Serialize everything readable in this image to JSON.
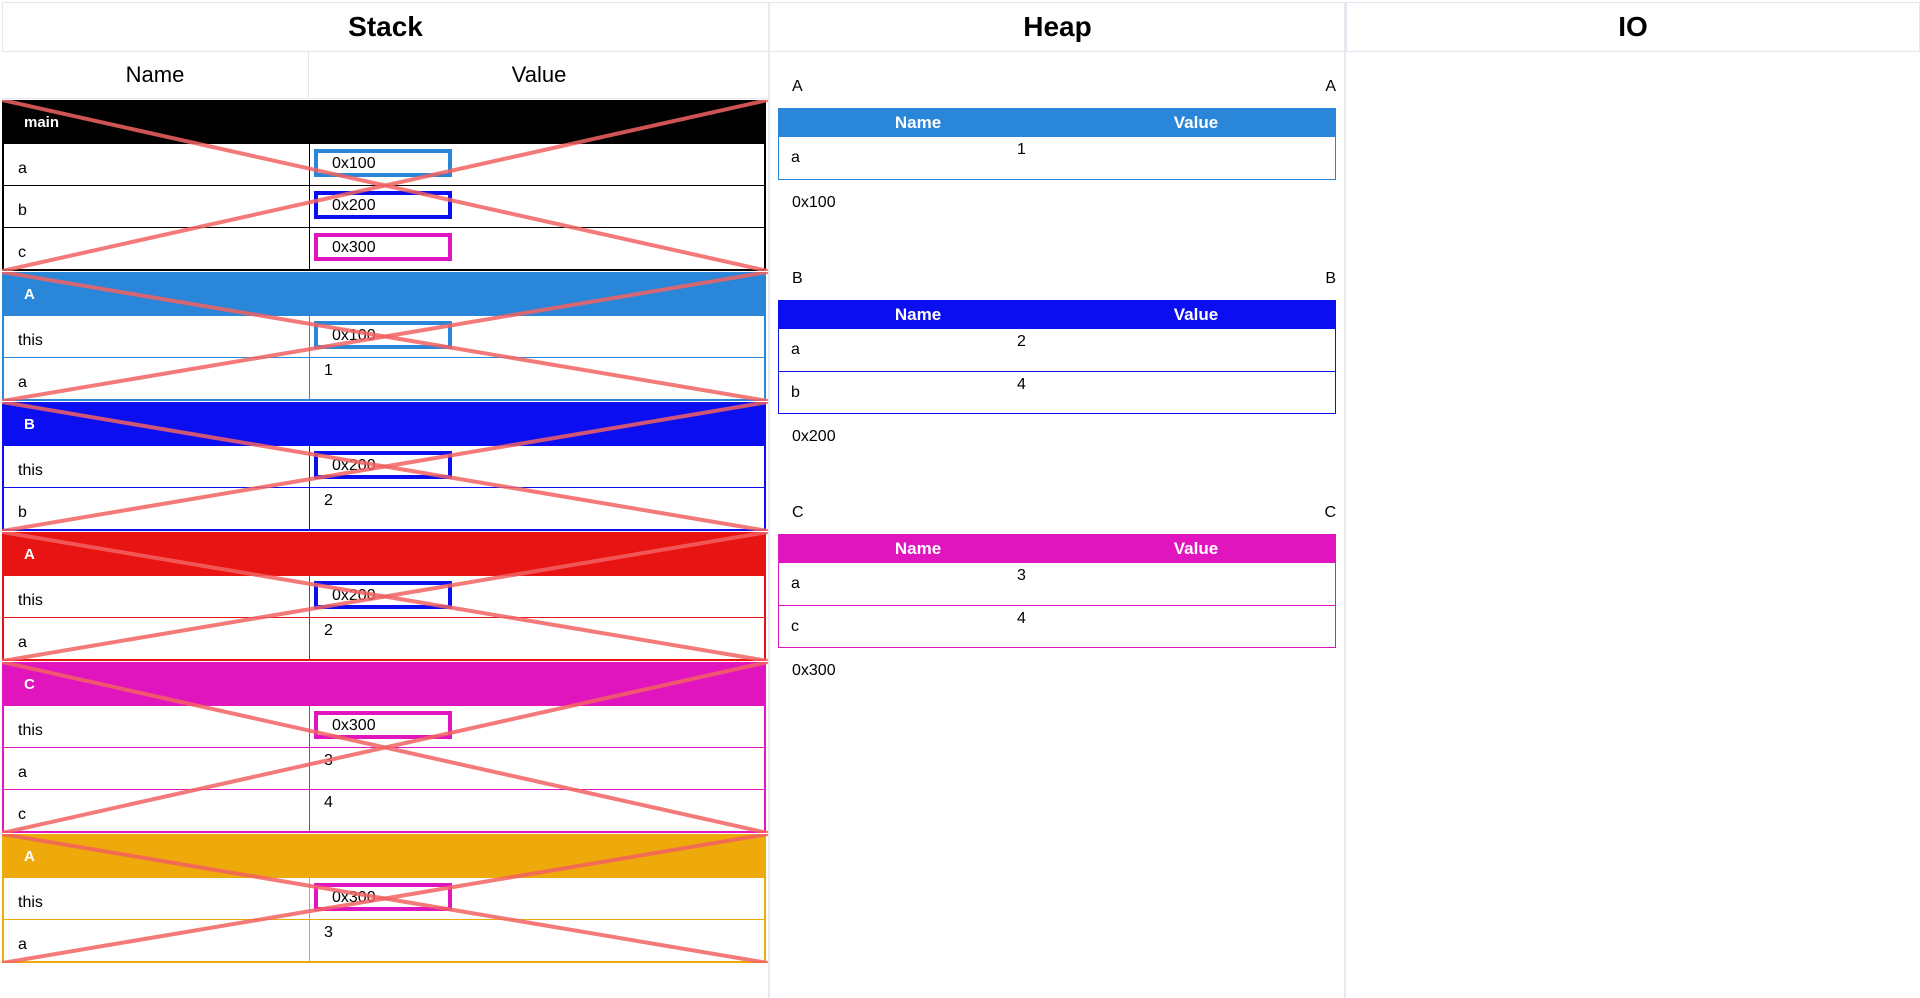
{
  "columns": {
    "stack": "Stack",
    "heap": "Heap",
    "io": "IO"
  },
  "stack_header": {
    "name": "Name",
    "value": "Value"
  },
  "frames": [
    {
      "title": "main",
      "color": "#000000",
      "rows": [
        {
          "name": "a",
          "value": "0x100",
          "pointer": true,
          "ptr_color": "#2a86d8"
        },
        {
          "name": "b",
          "value": "0x200",
          "pointer": true,
          "ptr_color": "#0b0ef0"
        },
        {
          "name": "c",
          "value": "0x300",
          "pointer": true,
          "ptr_color": "#e015be"
        }
      ]
    },
    {
      "title": "A",
      "color": "#2a86d8",
      "rows": [
        {
          "name": "this",
          "value": "0x100",
          "pointer": true,
          "ptr_color": "#2a86d8"
        },
        {
          "name": "a",
          "value": "1",
          "pointer": false
        }
      ]
    },
    {
      "title": "B",
      "color": "#0b0ef0",
      "rows": [
        {
          "name": "this",
          "value": "0x200",
          "pointer": true,
          "ptr_color": "#0b0ef0"
        },
        {
          "name": "b",
          "value": "2",
          "pointer": false
        }
      ]
    },
    {
      "title": "A",
      "color": "#e81313",
      "rows": [
        {
          "name": "this",
          "value": "0x200",
          "pointer": true,
          "ptr_color": "#0b0ef0"
        },
        {
          "name": "a",
          "value": "2",
          "pointer": false
        }
      ]
    },
    {
      "title": "C",
      "color": "#e015be",
      "rows": [
        {
          "name": "this",
          "value": "0x300",
          "pointer": true,
          "ptr_color": "#e015be"
        },
        {
          "name": "a",
          "value": "3",
          "pointer": false
        },
        {
          "name": "c",
          "value": "4",
          "pointer": false
        }
      ]
    },
    {
      "title": "A",
      "color": "#eeaa0a",
      "rows": [
        {
          "name": "this",
          "value": "0x300",
          "pointer": true,
          "ptr_color": "#e015be"
        },
        {
          "name": "a",
          "value": "3",
          "pointer": false
        }
      ]
    }
  ],
  "heap": [
    {
      "label_left": "A",
      "label_right": "A",
      "color": "#2a86d8",
      "header_name": "Name",
      "header_value": "Value",
      "rows": [
        {
          "name": "a",
          "value": "1"
        }
      ],
      "address": "0x100"
    },
    {
      "label_left": "B",
      "label_right": "B",
      "color": "#0b0ef0",
      "header_name": "Name",
      "header_value": "Value",
      "rows": [
        {
          "name": "a",
          "value": "2"
        },
        {
          "name": "b",
          "value": "4"
        }
      ],
      "address": "0x200"
    },
    {
      "label_left": "C",
      "label_right": "C",
      "color": "#e015be",
      "header_name": "Name",
      "header_value": "Value",
      "rows": [
        {
          "name": "a",
          "value": "3"
        },
        {
          "name": "c",
          "value": "4"
        }
      ],
      "address": "0x300"
    }
  ],
  "cross_color": "#f26161"
}
